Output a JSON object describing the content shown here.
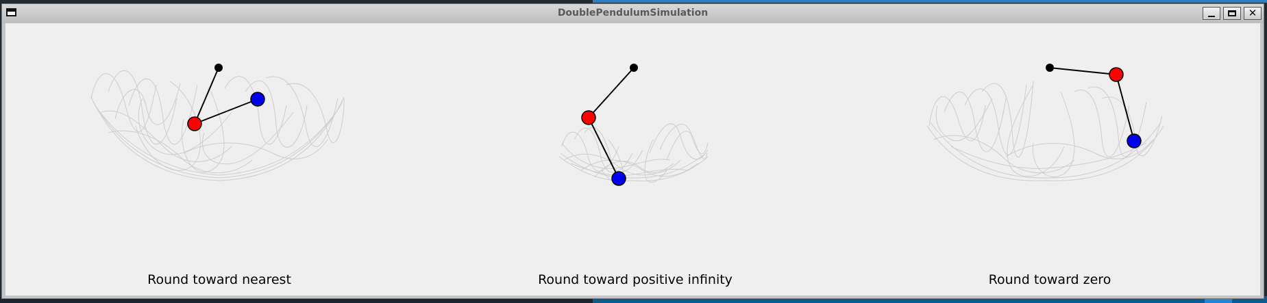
{
  "window": {
    "title": "DoublePendulumSimulation",
    "controls": [
      "minimize",
      "maximize",
      "close"
    ]
  },
  "colors": {
    "bob1": "#ff0000",
    "bob2": "#0000ee",
    "trail": "#c8c8c8",
    "background": "#efefef"
  },
  "panels": [
    {
      "label": "Round toward nearest"
    },
    {
      "label": "Round toward positive infinity"
    },
    {
      "label": "Round toward zero"
    }
  ]
}
